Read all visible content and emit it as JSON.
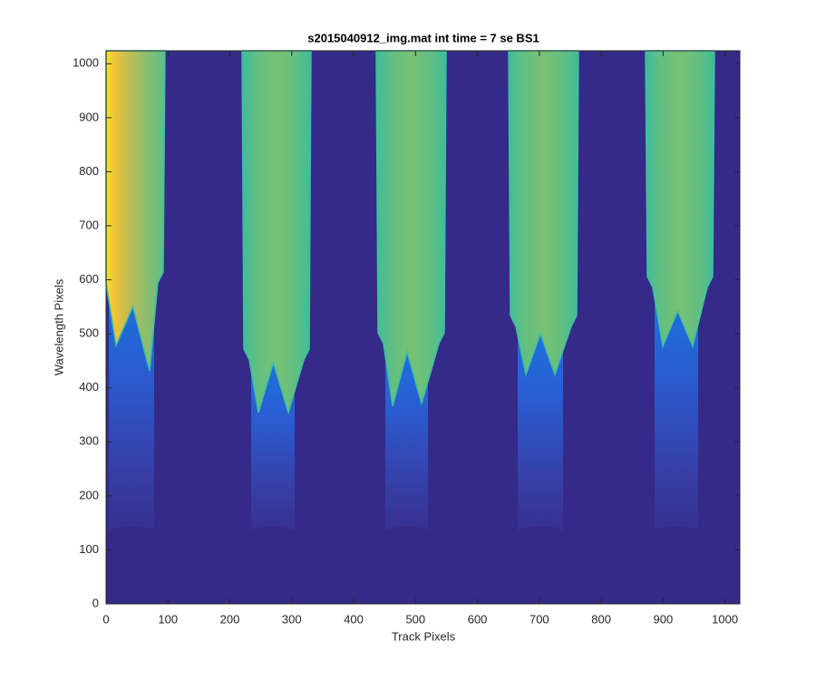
{
  "chart_data": {
    "type": "image",
    "title": "s2015040912_img.mat int time = 7 se   BS1",
    "xlabel": "Track Pixels",
    "ylabel": "Wavelength Pixels",
    "xlim": [
      0,
      1024
    ],
    "ylim": [
      0,
      1024
    ],
    "xticks": [
      0,
      100,
      200,
      300,
      400,
      500,
      600,
      700,
      800,
      900,
      1000
    ],
    "yticks": [
      0,
      100,
      200,
      300,
      400,
      500,
      600,
      700,
      800,
      900,
      1000
    ]
  }
}
